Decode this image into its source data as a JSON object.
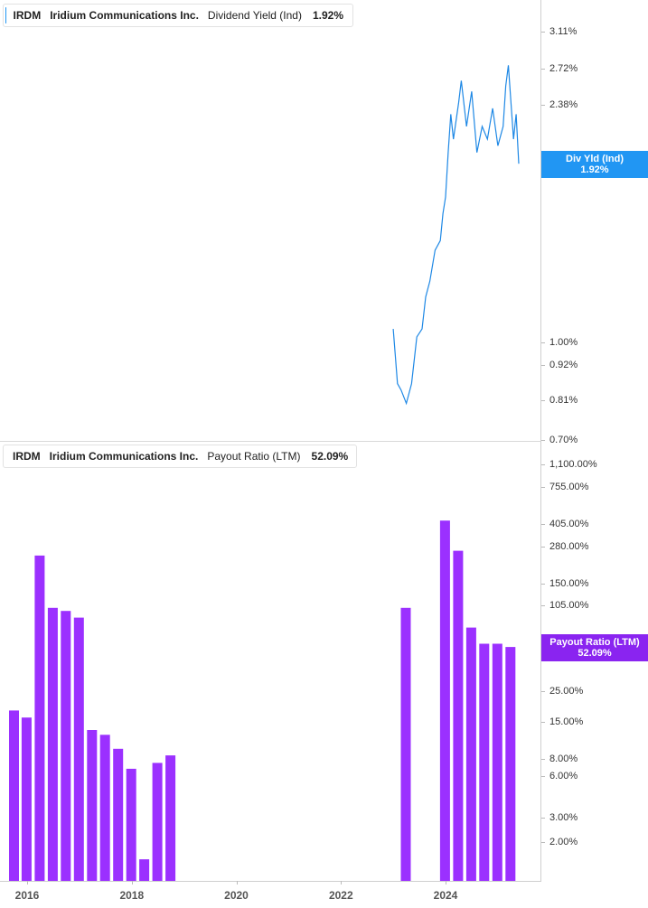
{
  "colors": {
    "yield_line": "#1e88e5",
    "yield_tag": "#2196f3",
    "payout_bar": "#9b30ff",
    "payout_tag": "#8a24f0"
  },
  "top_legend": {
    "symbol": "IRDM",
    "company": "Iridium Communications Inc.",
    "metric": "Dividend Yield (Ind)",
    "value": "1.92%"
  },
  "bottom_legend": {
    "symbol": "IRDM",
    "company": "Iridium Communications Inc.",
    "metric": "Payout Ratio (LTM)",
    "value": "52.09%"
  },
  "top_tag": {
    "line1": "Div Yld (Ind)",
    "line2": "1.92%"
  },
  "bottom_tag": {
    "line1": "Payout Ratio (LTM)",
    "line2": "52.09%"
  },
  "chart_data": [
    {
      "type": "line",
      "scale": "log",
      "ylim": [
        0.7,
        3.3
      ],
      "y_ticks": [
        "3.11%",
        "2.72%",
        "2.38%",
        "1.00%",
        "0.92%",
        "0.81%",
        "0.70%"
      ],
      "y_tick_values": [
        3.11,
        2.72,
        2.38,
        1.0,
        0.92,
        0.81,
        0.7
      ],
      "series": [
        {
          "x": [
            2023.0,
            2023.08,
            2023.15,
            2023.25,
            2023.35,
            2023.45,
            2023.55,
            2023.62,
            2023.7,
            2023.8,
            2023.9,
            2023.95,
            2024.0,
            2024.05,
            2024.1,
            2024.15,
            2024.25,
            2024.3,
            2024.4,
            2024.5,
            2024.6,
            2024.7,
            2024.8,
            2024.9,
            2025.0,
            2025.1,
            2025.15,
            2025.2,
            2025.3,
            2025.35,
            2025.4
          ],
          "values": [
            1.05,
            0.86,
            0.84,
            0.8,
            0.86,
            1.02,
            1.05,
            1.18,
            1.25,
            1.4,
            1.45,
            1.6,
            1.7,
            2.0,
            2.3,
            2.1,
            2.4,
            2.6,
            2.2,
            2.5,
            2.0,
            2.2,
            2.1,
            2.35,
            2.05,
            2.2,
            2.55,
            2.75,
            2.1,
            2.3,
            1.92
          ]
        }
      ]
    },
    {
      "type": "bar",
      "scale": "log",
      "ylim": [
        1.0,
        2000
      ],
      "y_ticks": [
        "1,100.00%",
        "755.00%",
        "405.00%",
        "280.00%",
        "150.00%",
        "105.00%",
        "25.00%",
        "15.00%",
        "8.00%",
        "6.00%",
        "3.00%",
        "2.00%"
      ],
      "y_tick_values": [
        1100,
        755,
        405,
        280,
        150,
        105,
        25,
        15,
        8,
        6,
        3,
        2
      ],
      "x": [
        2015.75,
        2015.99,
        2016.24,
        2016.49,
        2016.74,
        2016.99,
        2017.24,
        2017.49,
        2017.74,
        2017.99,
        2018.24,
        2018.49,
        2018.74,
        2023.24,
        2023.99,
        2024.24,
        2024.49,
        2024.74,
        2024.99,
        2025.24
      ],
      "values": [
        18,
        16,
        240,
        100,
        95,
        85,
        13,
        12,
        9.5,
        6.8,
        1.5,
        7.5,
        8.5,
        100,
        430,
        260,
        72,
        55,
        55,
        52.09
      ]
    }
  ],
  "x_axis": {
    "labels": [
      "2016",
      "2018",
      "2020",
      "2022",
      "2024"
    ],
    "values": [
      2016,
      2018,
      2020,
      2022,
      2024
    ]
  }
}
